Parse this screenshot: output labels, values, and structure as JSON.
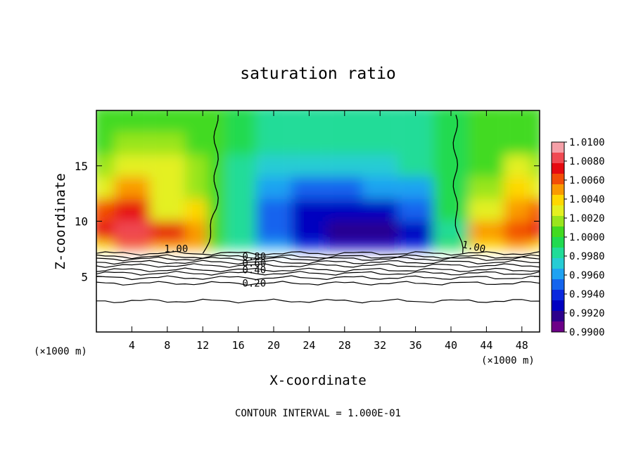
{
  "chart_data": {
    "type": "heatmap",
    "title": "saturation ratio",
    "xlabel": "X-coordinate",
    "ylabel": "Z-coordinate",
    "x_unit_left": "(×1000 m)",
    "x_unit_right": "(×1000 m)",
    "footnote": "CONTOUR INTERVAL = 1.000E-01",
    "xlim": [
      0,
      50
    ],
    "ylim": [
      0,
      20
    ],
    "x_ticks": [
      4,
      8,
      12,
      16,
      20,
      24,
      28,
      32,
      36,
      40,
      44,
      48
    ],
    "y_ticks": [
      5,
      10,
      15
    ],
    "colorbar": {
      "ticks": [
        "1.0100",
        "1.0080",
        "1.0060",
        "1.0040",
        "1.0020",
        "1.0000",
        "0.9980",
        "0.9960",
        "0.9940",
        "0.9920",
        "0.9900"
      ],
      "colors": [
        "#f5a0a8",
        "#f04a52",
        "#e60a10",
        "#f24e06",
        "#fa9a00",
        "#ffd800",
        "#e4f020",
        "#9ae51c",
        "#42da20",
        "#20da50",
        "#20dc98",
        "#26ccd4",
        "#1ea2f2",
        "#1464ee",
        "#0a28de",
        "#0000c0",
        "#2c008c",
        "#6c0088"
      ]
    },
    "contour_labels": [
      "1.00",
      "1.00",
      "0.80",
      "0.60",
      "0.40",
      "0.20"
    ],
    "x": [
      0,
      4,
      8,
      12,
      13,
      16,
      20,
      24,
      28,
      32,
      36,
      40,
      44,
      48,
      50
    ],
    "z": [
      7.5,
      9,
      11,
      13,
      15,
      17,
      19
    ],
    "values": [
      [
        1.004,
        1.006,
        1.0055,
        1.0045,
        1.0008,
        0.9986,
        0.9965,
        0.9935,
        0.9925,
        0.993,
        0.994,
        0.999,
        1.004,
        1.0045,
        1.004
      ],
      [
        1.007,
        1.008,
        1.007,
        1.005,
        1.0006,
        0.9984,
        0.9955,
        0.9925,
        0.9915,
        0.9915,
        0.9925,
        0.9988,
        1.005,
        1.006,
        1.007
      ],
      [
        1.006,
        1.007,
        1.003,
        1.004,
        1.0005,
        0.9983,
        0.995,
        0.993,
        0.993,
        0.993,
        0.9945,
        0.9989,
        1.003,
        1.0055,
        1.0065
      ],
      [
        1.003,
        1.0045,
        1.003,
        1.002,
        1.0004,
        0.9984,
        0.996,
        0.995,
        0.9955,
        0.9958,
        0.9965,
        0.9991,
        1.002,
        1.004,
        1.003
      ],
      [
        1.0015,
        1.003,
        1.0025,
        1.0015,
        1.0003,
        0.9987,
        0.997,
        0.9968,
        0.9972,
        0.9975,
        0.9978,
        0.9994,
        1.001,
        1.0025,
        1.0015
      ],
      [
        1.0008,
        1.0012,
        1.0012,
        1.0008,
        1.0002,
        0.999,
        0.9978,
        0.9978,
        0.998,
        0.9982,
        0.9985,
        0.9996,
        1.0006,
        1.001,
        1.0005
      ],
      [
        1.0005,
        1.0008,
        1.0008,
        1.0005,
        1.0001,
        0.9992,
        0.9982,
        0.9982,
        0.9984,
        0.9986,
        0.9988,
        0.9998,
        1.0003,
        1.0006,
        1.0003
      ]
    ],
    "unsaturated_layer_contours": [
      {
        "value": 1.0,
        "z": 7.1
      },
      {
        "value": 0.9,
        "z": 6.8
      },
      {
        "value": 0.8,
        "z": 6.6
      },
      {
        "value": 0.7,
        "z": 6.3
      },
      {
        "value": 0.6,
        "z": 6.0
      },
      {
        "value": 0.5,
        "z": 5.6
      },
      {
        "value": 0.4,
        "z": 5.3
      },
      {
        "value": 0.3,
        "z": 4.9
      },
      {
        "value": 0.2,
        "z": 4.4
      },
      {
        "value": 0.1,
        "z": 2.8
      }
    ],
    "saturation_boundary_x": [
      13.5,
      40.5
    ]
  }
}
